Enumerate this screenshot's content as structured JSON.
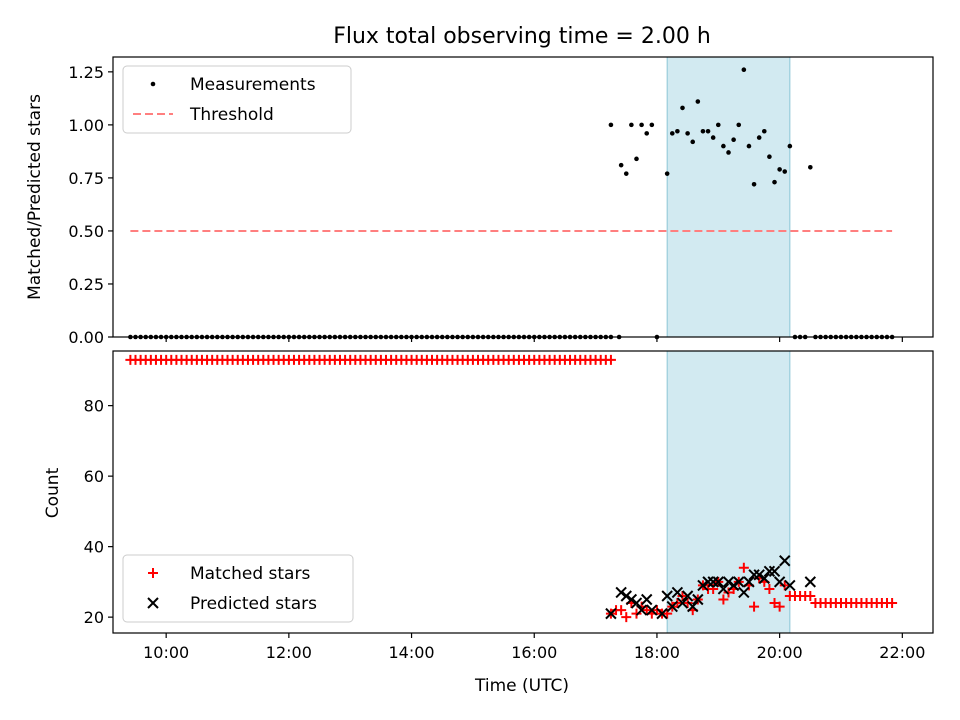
{
  "chart_data": [
    {
      "type": "scatter",
      "title": "Flux total observing time = 2.00 h",
      "xlabel": "",
      "ylabel": "Matched/Predicted stars",
      "xlim": [
        "09:08",
        "22:30"
      ],
      "ylim": [
        0,
        1.32
      ],
      "yticks": [
        0.0,
        0.25,
        0.5,
        0.75,
        1.0,
        1.25
      ],
      "ytick_labels": [
        "0.00",
        "0.25",
        "0.50",
        "0.75",
        "1.00",
        "1.25"
      ],
      "xticks": [
        "10:00",
        "12:00",
        "14:00",
        "16:00",
        "18:00",
        "20:00",
        "22:00"
      ],
      "shaded_interval": [
        "18:10",
        "20:10"
      ],
      "legend_position": "upper-left",
      "series": [
        {
          "name": "Measurements",
          "kind": "dots",
          "color": "#000000",
          "zero_run": {
            "start": "09:25",
            "end": "17:15",
            "step_min": 5,
            "value": 0
          },
          "zero_points": [
            [
              "17:23",
              0
            ],
            [
              "18:00",
              0
            ],
            [
              "20:15",
              0
            ],
            [
              "20:20",
              0
            ],
            [
              "20:25",
              0
            ],
            [
              "20:35",
              0
            ],
            [
              "20:40",
              0
            ],
            [
              "20:45",
              0
            ],
            [
              "20:50",
              0
            ],
            [
              "20:55",
              0
            ],
            [
              "21:00",
              0
            ],
            [
              "21:05",
              0
            ],
            [
              "21:10",
              0
            ],
            [
              "21:15",
              0
            ],
            [
              "21:20",
              0
            ],
            [
              "21:25",
              0
            ],
            [
              "21:30",
              0
            ],
            [
              "21:35",
              0
            ],
            [
              "21:40",
              0
            ],
            [
              "21:45",
              0
            ],
            [
              "21:50",
              0
            ]
          ],
          "points": [
            [
              "17:15",
              1.0
            ],
            [
              "17:25",
              0.81
            ],
            [
              "17:30",
              0.77
            ],
            [
              "17:35",
              1.0
            ],
            [
              "17:40",
              0.84
            ],
            [
              "17:45",
              1.0
            ],
            [
              "17:50",
              0.96
            ],
            [
              "17:55",
              1.0
            ],
            [
              "18:10",
              0.77
            ],
            [
              "18:15",
              0.96
            ],
            [
              "18:20",
              0.97
            ],
            [
              "18:25",
              1.08
            ],
            [
              "18:30",
              0.96
            ],
            [
              "18:35",
              0.92
            ],
            [
              "18:40",
              1.11
            ],
            [
              "18:45",
              0.97
            ],
            [
              "18:50",
              0.97
            ],
            [
              "18:55",
              0.94
            ],
            [
              "19:00",
              1.0
            ],
            [
              "19:05",
              0.9
            ],
            [
              "19:10",
              0.87
            ],
            [
              "19:15",
              0.93
            ],
            [
              "19:20",
              1.0
            ],
            [
              "19:25",
              1.26
            ],
            [
              "19:30",
              0.9
            ],
            [
              "19:35",
              0.72
            ],
            [
              "19:40",
              0.94
            ],
            [
              "19:45",
              0.97
            ],
            [
              "19:50",
              0.85
            ],
            [
              "19:55",
              0.73
            ],
            [
              "20:00",
              0.79
            ],
            [
              "20:05",
              0.78
            ],
            [
              "20:10",
              0.9
            ],
            [
              "20:30",
              0.8
            ]
          ]
        },
        {
          "name": "Threshold",
          "kind": "dashed-line",
          "color": "#ff7f7f",
          "points": [
            [
              "09:25",
              0.5
            ],
            [
              "21:50",
              0.5
            ]
          ]
        }
      ]
    },
    {
      "type": "scatter",
      "title": "",
      "xlabel": "Time (UTC)",
      "ylabel": "Count",
      "xlim": [
        "09:08",
        "22:30"
      ],
      "ylim": [
        15.5,
        95.5
      ],
      "yticks": [
        20,
        40,
        60,
        80
      ],
      "ytick_labels": [
        "20",
        "40",
        "60",
        "80"
      ],
      "xticks": [
        "10:00",
        "12:00",
        "14:00",
        "16:00",
        "18:00",
        "20:00",
        "22:00"
      ],
      "xtick_labels": [
        "10:00",
        "12:00",
        "14:00",
        "16:00",
        "18:00",
        "20:00",
        "22:00"
      ],
      "shaded_interval": [
        "18:10",
        "20:10"
      ],
      "legend_position": "lower-left",
      "series": [
        {
          "name": "Matched stars",
          "kind": "plus",
          "color": "#ff0000",
          "run": {
            "start": "09:25",
            "end": "17:15",
            "step_min": 5,
            "value": 93
          },
          "run2": {
            "start": "20:35",
            "end": "21:50",
            "step_min": 5,
            "value": 24
          },
          "points": [
            [
              "17:15",
              21
            ],
            [
              "17:20",
              22
            ],
            [
              "17:25",
              22
            ],
            [
              "17:30",
              20
            ],
            [
              "17:35",
              24
            ],
            [
              "17:40",
              21
            ],
            [
              "17:45",
              23
            ],
            [
              "17:50",
              22
            ],
            [
              "17:55",
              21
            ],
            [
              "18:00",
              22
            ],
            [
              "18:05",
              21
            ],
            [
              "18:10",
              21
            ],
            [
              "18:15",
              23
            ],
            [
              "18:20",
              24
            ],
            [
              "18:25",
              26
            ],
            [
              "18:30",
              24
            ],
            [
              "18:35",
              22
            ],
            [
              "18:40",
              25
            ],
            [
              "18:45",
              29
            ],
            [
              "18:50",
              28
            ],
            [
              "18:55",
              28
            ],
            [
              "19:00",
              30
            ],
            [
              "19:05",
              25
            ],
            [
              "19:10",
              27
            ],
            [
              "19:15",
              28
            ],
            [
              "19:20",
              30
            ],
            [
              "19:25",
              34
            ],
            [
              "19:30",
              29
            ],
            [
              "19:35",
              23
            ],
            [
              "19:40",
              31
            ],
            [
              "19:45",
              30
            ],
            [
              "19:50",
              28
            ],
            [
              "19:55",
              24
            ],
            [
              "20:00",
              23
            ],
            [
              "20:05",
              29
            ],
            [
              "20:10",
              26
            ],
            [
              "20:15",
              26
            ],
            [
              "20:20",
              26
            ],
            [
              "20:25",
              26
            ],
            [
              "20:30",
              26
            ]
          ]
        },
        {
          "name": "Predicted stars",
          "kind": "x",
          "color": "#000000",
          "points": [
            [
              "17:15",
              21
            ],
            [
              "17:25",
              27
            ],
            [
              "17:30",
              26
            ],
            [
              "17:35",
              25
            ],
            [
              "17:40",
              24
            ],
            [
              "17:45",
              22
            ],
            [
              "17:50",
              25
            ],
            [
              "17:55",
              22
            ],
            [
              "18:05",
              21
            ],
            [
              "18:10",
              26
            ],
            [
              "18:15",
              23
            ],
            [
              "18:20",
              27
            ],
            [
              "18:25",
              24
            ],
            [
              "18:30",
              26
            ],
            [
              "18:35",
              23
            ],
            [
              "18:40",
              25
            ],
            [
              "18:45",
              29
            ],
            [
              "18:50",
              30
            ],
            [
              "18:55",
              30
            ],
            [
              "19:00",
              30
            ],
            [
              "19:05",
              28
            ],
            [
              "19:10",
              30
            ],
            [
              "19:15",
              29
            ],
            [
              "19:20",
              30
            ],
            [
              "19:25",
              27
            ],
            [
              "19:30",
              30
            ],
            [
              "19:35",
              32
            ],
            [
              "19:40",
              32
            ],
            [
              "19:45",
              31
            ],
            [
              "19:50",
              33
            ],
            [
              "19:55",
              33
            ],
            [
              "20:00",
              30
            ],
            [
              "20:05",
              36
            ],
            [
              "20:10",
              29
            ],
            [
              "20:30",
              30
            ]
          ]
        }
      ]
    }
  ]
}
